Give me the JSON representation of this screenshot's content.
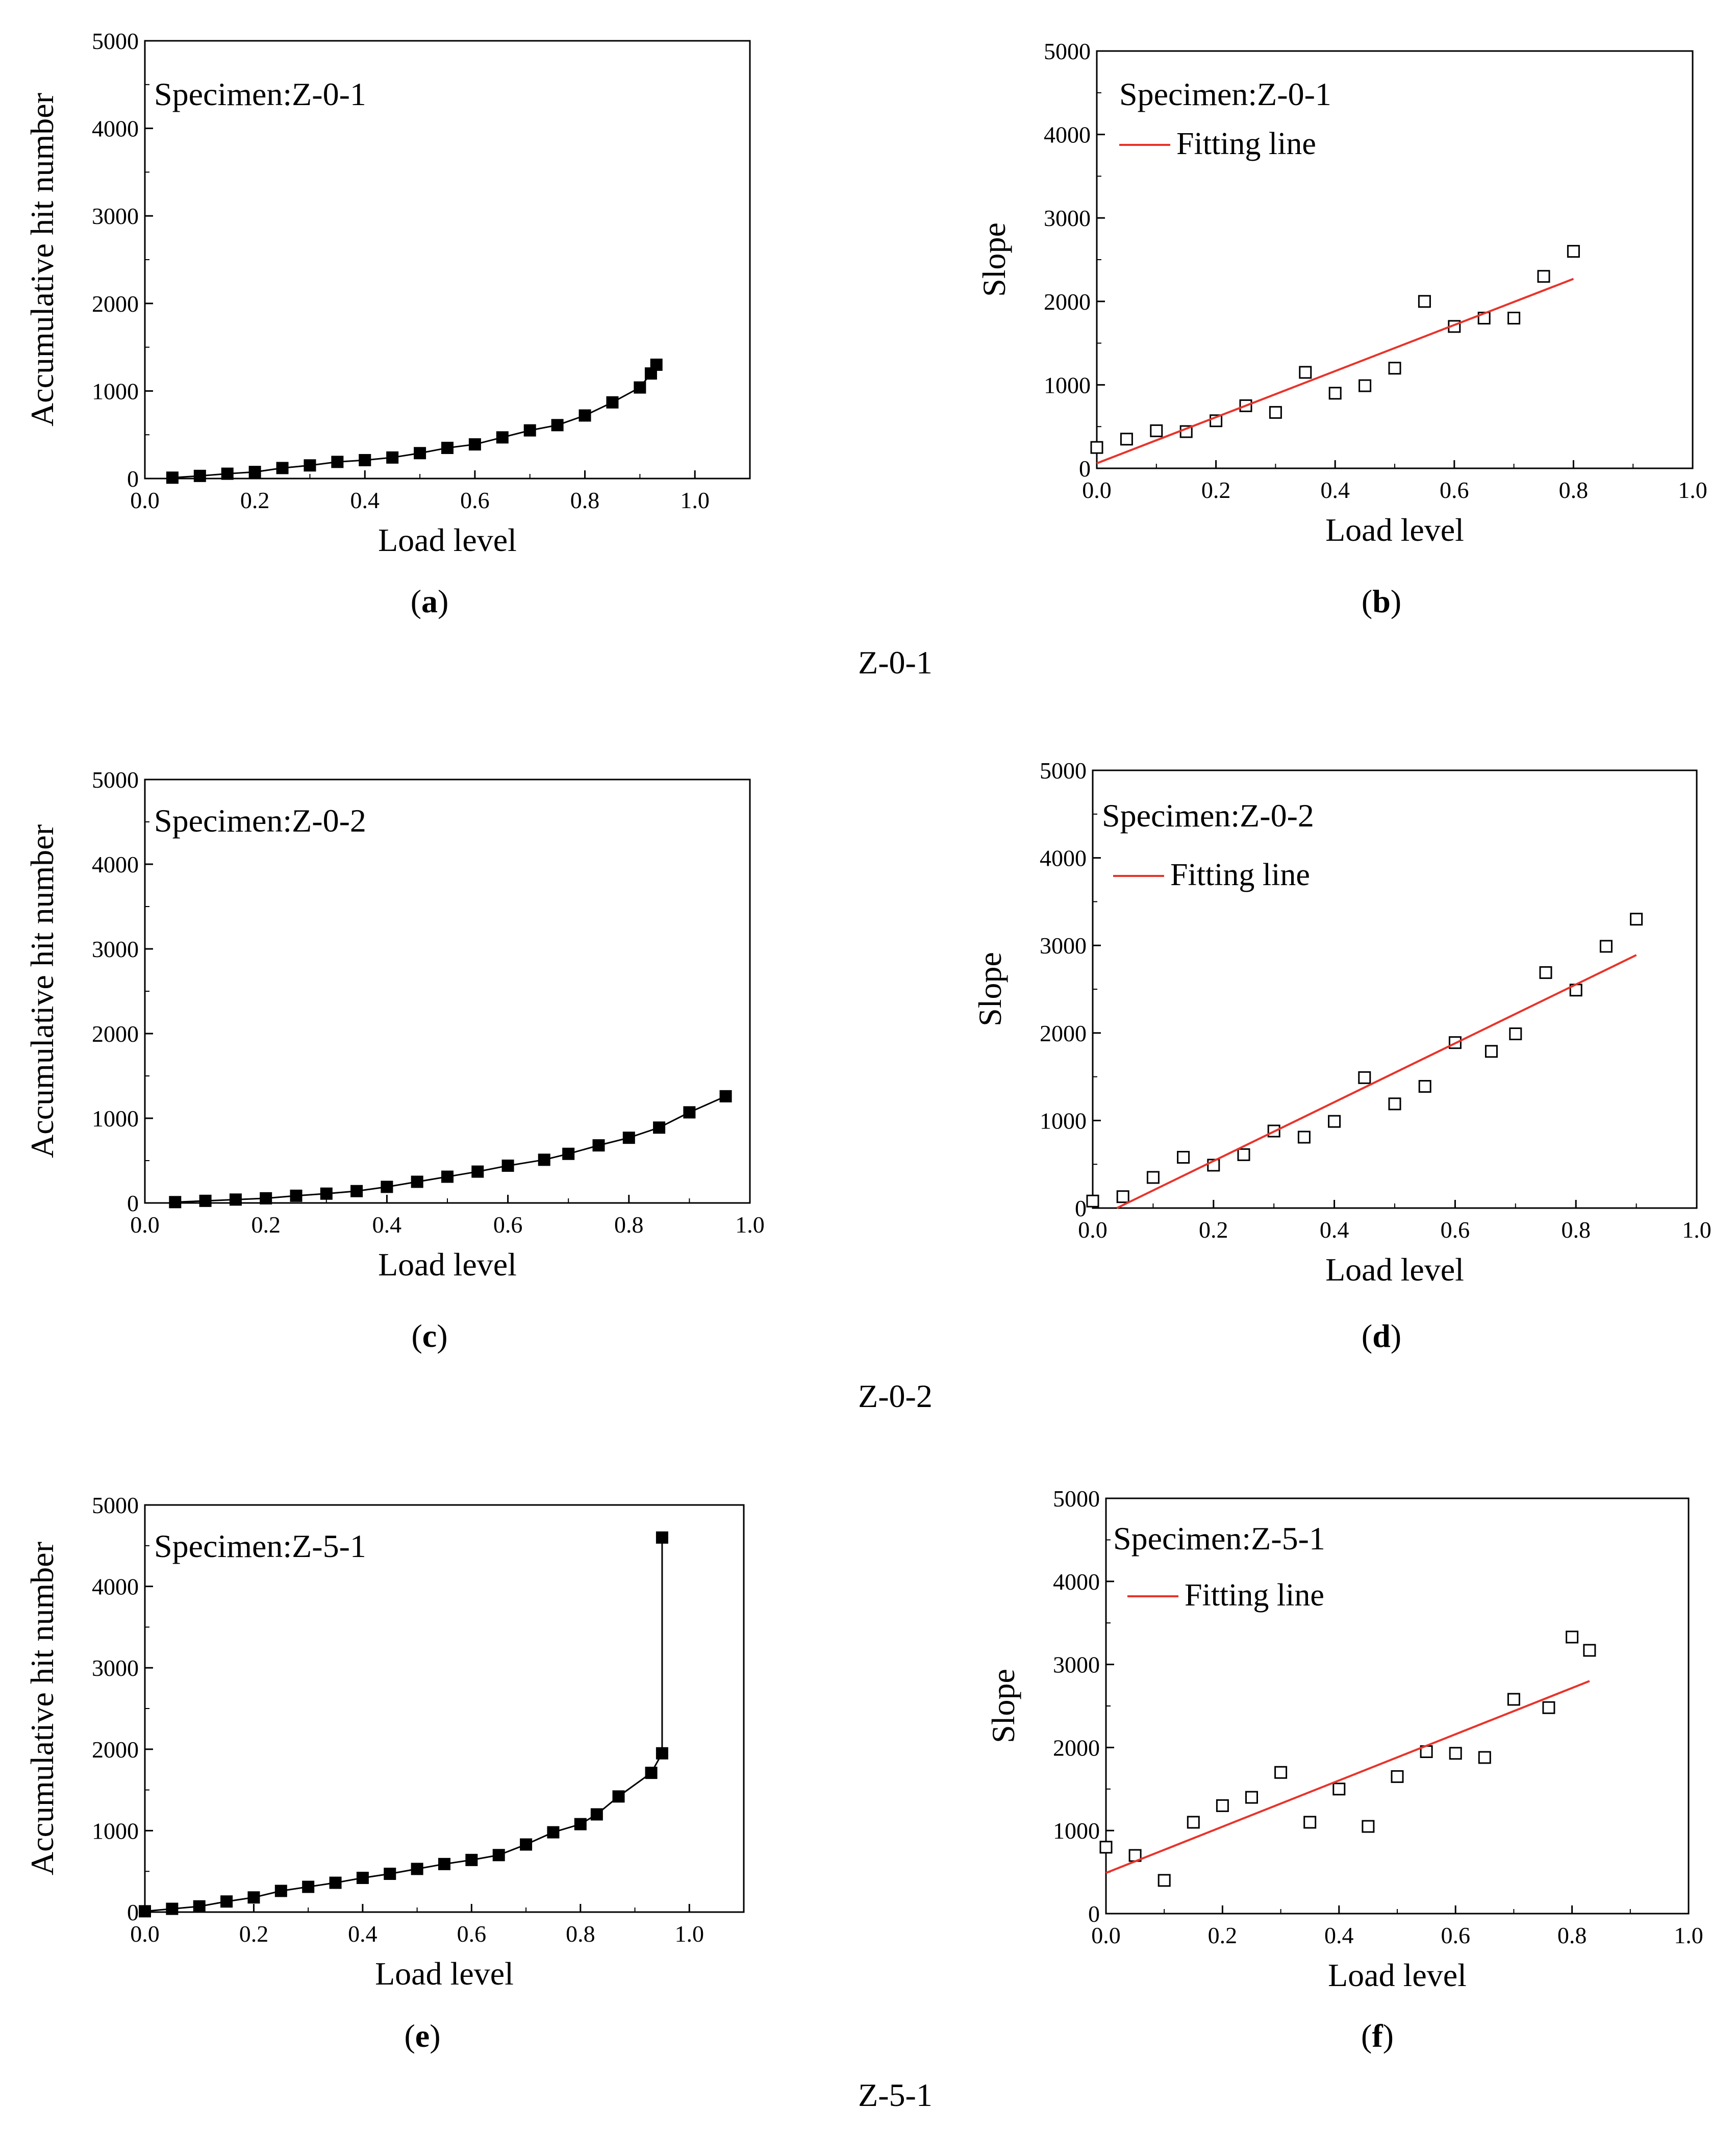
{
  "colors": {
    "axis": "#000000",
    "measured_series": "#000000",
    "fitting_line": "#e8332a"
  },
  "chart_data": [
    {
      "id": "a",
      "type": "line",
      "marker": "filled-square",
      "caption_letter": "a",
      "specimen_text": "Specimen:Z-0-1",
      "xlabel": "Load level",
      "ylabel": "Accumulative hit number",
      "xlim": [
        0,
        1.1
      ],
      "ylim": [
        0,
        5000
      ],
      "xticks": [
        "0.0",
        "0.2",
        "0.4",
        "0.6",
        "0.8",
        "1.0"
      ],
      "yticks": [
        "0",
        "1000",
        "2000",
        "3000",
        "4000",
        "5000"
      ],
      "series": [
        {
          "x": [
            0.05,
            0.1,
            0.15,
            0.2,
            0.25,
            0.3,
            0.35,
            0.4,
            0.45,
            0.5,
            0.55,
            0.6,
            0.65,
            0.7,
            0.75,
            0.8,
            0.85,
            0.9,
            0.92,
            0.93
          ],
          "y": [
            10,
            30,
            55,
            75,
            120,
            150,
            190,
            210,
            240,
            290,
            350,
            390,
            470,
            550,
            610,
            720,
            870,
            1040,
            1200,
            1300
          ]
        }
      ]
    },
    {
      "id": "b",
      "type": "scatter",
      "marker": "open-square",
      "caption_letter": "b",
      "specimen_text": "Specimen:Z-0-1",
      "legend": [
        "Fitting line"
      ],
      "xlabel": "Load level",
      "ylabel": "Slope",
      "xlim": [
        0,
        1.0
      ],
      "ylim": [
        0,
        5000
      ],
      "xticks": [
        "0.0",
        "0.2",
        "0.4",
        "0.6",
        "0.8",
        "1.0"
      ],
      "yticks": [
        "0",
        "1000",
        "2000",
        "3000",
        "4000",
        "5000"
      ],
      "series": [
        {
          "x": [
            0.0,
            0.05,
            0.1,
            0.15,
            0.2,
            0.25,
            0.3,
            0.35,
            0.4,
            0.45,
            0.5,
            0.55,
            0.6,
            0.65,
            0.7,
            0.75,
            0.8
          ],
          "y": [
            250,
            350,
            450,
            440,
            570,
            750,
            670,
            1150,
            900,
            990,
            1200,
            2000,
            1700,
            1800,
            1800,
            2300,
            2600
          ]
        }
      ],
      "fit": {
        "x": [
          0.0,
          0.8
        ],
        "y": [
          60,
          2270
        ]
      }
    },
    {
      "id": "c",
      "type": "line",
      "marker": "filled-square",
      "caption_letter": "c",
      "specimen_text": "Specimen:Z-0-2",
      "xlabel": "Load level",
      "ylabel": "Accumulative hit number",
      "xlim": [
        0,
        1.0
      ],
      "ylim": [
        0,
        5000
      ],
      "xticks": [
        "0.0",
        "0.2",
        "0.4",
        "0.6",
        "0.8",
        "1.0"
      ],
      "yticks": [
        "0",
        "1000",
        "2000",
        "3000",
        "4000",
        "5000"
      ],
      "series": [
        {
          "x": [
            0.05,
            0.1,
            0.15,
            0.2,
            0.25,
            0.3,
            0.35,
            0.4,
            0.45,
            0.5,
            0.55,
            0.6,
            0.66,
            0.7,
            0.75,
            0.8,
            0.85,
            0.9,
            0.96
          ],
          "y": [
            10,
            25,
            40,
            55,
            85,
            110,
            140,
            190,
            250,
            310,
            370,
            440,
            510,
            580,
            680,
            770,
            890,
            1070,
            1260
          ]
        }
      ]
    },
    {
      "id": "d",
      "type": "scatter",
      "marker": "open-square",
      "caption_letter": "d",
      "specimen_text": "Specimen:Z-0-2",
      "legend": [
        "Fitting line"
      ],
      "xlabel": "Load level",
      "ylabel": "Slope",
      "xlim": [
        0,
        1.0
      ],
      "ylim": [
        0,
        5000
      ],
      "xticks": [
        "0.0",
        "0.2",
        "0.4",
        "0.6",
        "0.8",
        "1.0"
      ],
      "yticks": [
        "0",
        "1000",
        "2000",
        "3000",
        "4000",
        "5000"
      ],
      "series": [
        {
          "x": [
            0.0,
            0.05,
            0.1,
            0.15,
            0.2,
            0.25,
            0.3,
            0.35,
            0.4,
            0.45,
            0.5,
            0.55,
            0.6,
            0.66,
            0.7,
            0.75,
            0.8,
            0.85,
            0.9
          ],
          "y": [
            80,
            130,
            350,
            580,
            490,
            610,
            880,
            810,
            990,
            1490,
            1190,
            1390,
            1890,
            1790,
            1990,
            2690,
            2490,
            2990,
            3300
          ]
        }
      ],
      "fit": {
        "x": [
          0.04,
          0.9
        ],
        "y": [
          0,
          2890
        ]
      }
    },
    {
      "id": "e",
      "type": "line",
      "marker": "filled-square",
      "caption_letter": "e",
      "specimen_text": "Specimen:Z-5-1",
      "xlabel": "Load level",
      "ylabel": "Accumulative hit number",
      "xlim": [
        0,
        1.1
      ],
      "ylim": [
        0,
        5000
      ],
      "xticks": [
        "0.0",
        "0.2",
        "0.4",
        "0.6",
        "0.8",
        "1.0"
      ],
      "yticks": [
        "0",
        "1000",
        "2000",
        "3000",
        "4000",
        "5000"
      ],
      "series": [
        {
          "x": [
            0.0,
            0.05,
            0.1,
            0.15,
            0.2,
            0.25,
            0.3,
            0.35,
            0.4,
            0.45,
            0.5,
            0.55,
            0.6,
            0.65,
            0.7,
            0.75,
            0.8,
            0.83,
            0.87,
            0.93,
            0.95,
            0.95
          ],
          "y": [
            10,
            40,
            70,
            130,
            180,
            260,
            310,
            360,
            420,
            470,
            530,
            590,
            640,
            700,
            830,
            980,
            1080,
            1200,
            1420,
            1710,
            1950,
            4600
          ]
        }
      ]
    },
    {
      "id": "f",
      "type": "scatter",
      "marker": "open-square",
      "caption_letter": "f",
      "specimen_text": "Specimen:Z-5-1",
      "legend": [
        "Fitting line"
      ],
      "xlabel": "Load level",
      "ylabel": "Slope",
      "xlim": [
        0,
        1.0
      ],
      "ylim": [
        0,
        5000
      ],
      "xticks": [
        "0.0",
        "0.2",
        "0.4",
        "0.6",
        "0.8",
        "1.0"
      ],
      "yticks": [
        "0",
        "1000",
        "2000",
        "3000",
        "4000",
        "5000"
      ],
      "series": [
        {
          "x": [
            0.0,
            0.05,
            0.1,
            0.15,
            0.2,
            0.25,
            0.3,
            0.35,
            0.4,
            0.45,
            0.5,
            0.55,
            0.6,
            0.65,
            0.7,
            0.76,
            0.8,
            0.83
          ],
          "y": [
            800,
            700,
            400,
            1100,
            1300,
            1400,
            1700,
            1100,
            1500,
            1050,
            1650,
            1950,
            1930,
            1880,
            2580,
            2480,
            3330,
            3170
          ]
        }
      ],
      "fit": {
        "x": [
          0.0,
          0.83
        ],
        "y": [
          490,
          2800
        ]
      }
    }
  ],
  "group_captions": [
    "Z-0-1",
    "Z-0-2",
    "Z-5-1"
  ]
}
